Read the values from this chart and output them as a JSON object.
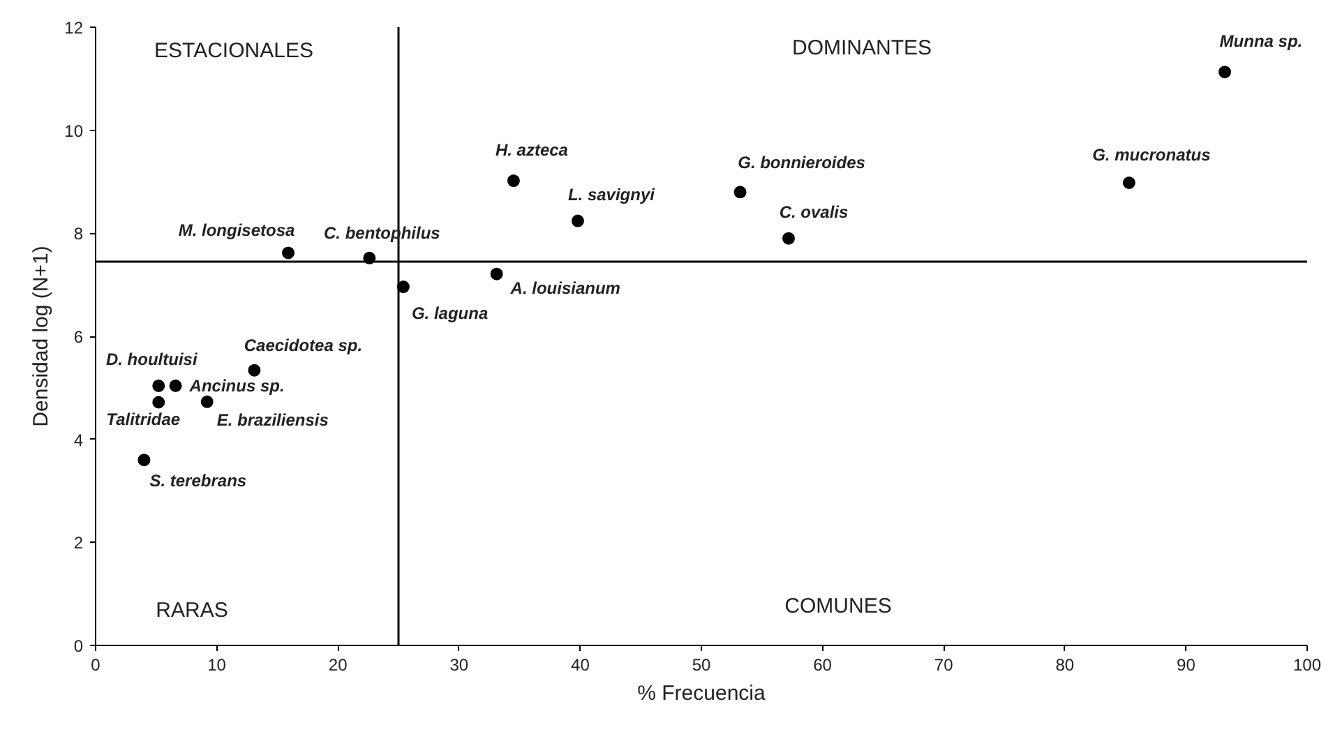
{
  "chart_data": {
    "type": "scatter",
    "xlabel": "% Frecuencia",
    "ylabel": "Densidad log (N+1)",
    "x": [
      93.2,
      85.3,
      53.2,
      57.2,
      34.5,
      39.8,
      33.1,
      25.4,
      22.6,
      15.9,
      13.1,
      5.2,
      6.6,
      5.2,
      9.2,
      4.0
    ],
    "series": [
      {
        "color": "#000000",
        "values": [
          11.13,
          8.98,
          8.8,
          7.9,
          9.02,
          8.24,
          7.21,
          6.96,
          7.52,
          7.62,
          5.34,
          5.04,
          5.04,
          4.72,
          4.73,
          3.6
        ],
        "value_labels": [
          "Munna sp.",
          "G. mucronatus",
          "G. bonnieroides",
          "C. ovalis",
          "H. azteca",
          "L. savignyi",
          "A. louisianum",
          "G. laguna",
          "C. bentophilus",
          "M. longisetosa",
          "Caecidotea sp.",
          "D. houltuisi",
          "Ancinus sp.",
          "Talitridae",
          "E. braziliensis",
          "S. terebrans"
        ]
      }
    ],
    "xlim": [
      0,
      100
    ],
    "ylim": [
      0,
      12
    ],
    "xticks": [
      0,
      10,
      20,
      30,
      40,
      50,
      60,
      70,
      80,
      90,
      100
    ],
    "yticks": [
      0,
      2,
      4,
      6,
      8,
      10,
      12
    ],
    "marker": "circle",
    "ref_lines": [
      {
        "axis": "x",
        "value": 25.0,
        "label": null,
        "color": "#000000"
      },
      {
        "axis": "y",
        "value": 7.45,
        "label": null,
        "color": "#000000"
      }
    ],
    "annotations": [
      "ESTACIONALES",
      "DOMINANTES",
      "RARAS",
      "COMUNES"
    ]
  }
}
